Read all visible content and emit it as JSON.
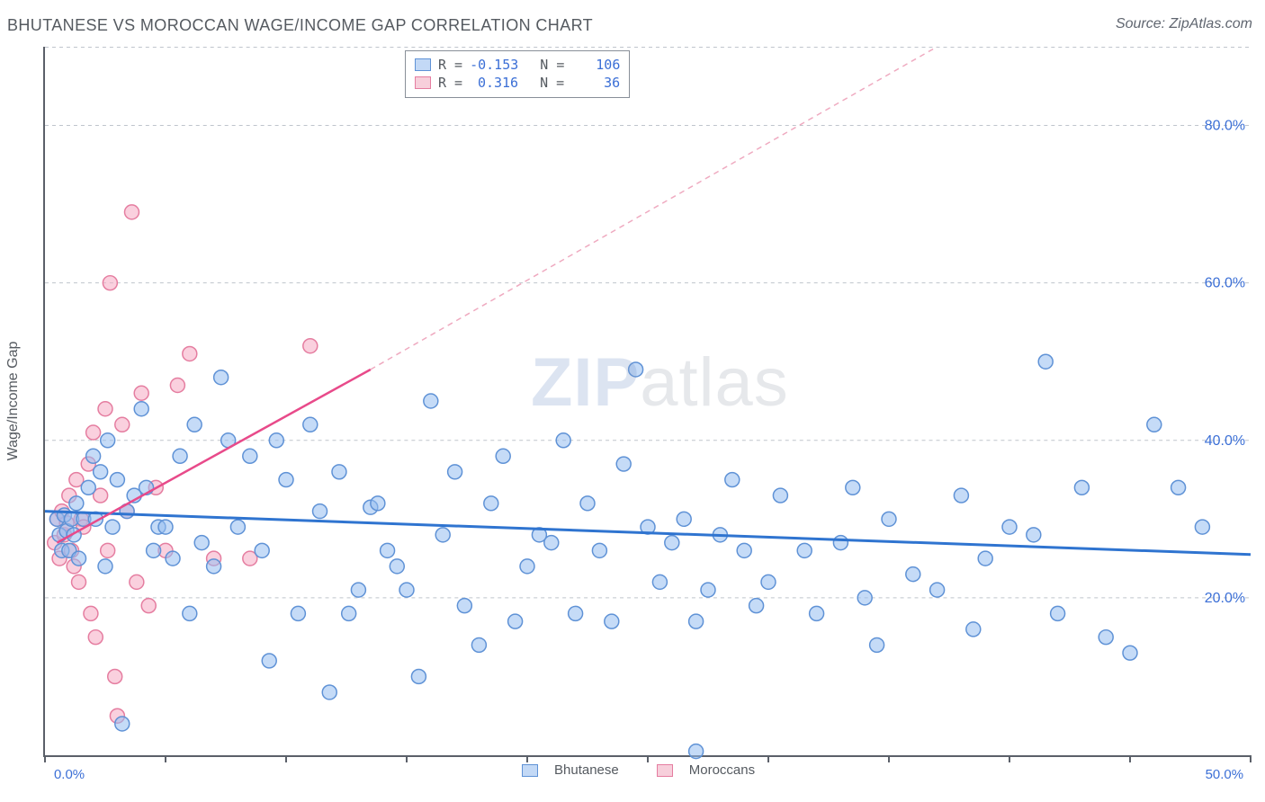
{
  "title": "BHUTANESE VS MOROCCAN WAGE/INCOME GAP CORRELATION CHART",
  "source_label": "Source: ZipAtlas.com",
  "ylabel": "Wage/Income Gap",
  "watermark_zip": "ZIP",
  "watermark_atlas": "atlas",
  "chart": {
    "type": "scatter",
    "xlim": [
      0,
      50
    ],
    "ylim": [
      0,
      90
    ],
    "x_ticks": [
      0,
      5,
      10,
      15,
      20,
      25,
      30,
      35,
      40,
      45,
      50
    ],
    "x_tick_labels": {
      "0": "0.0%",
      "50": "50.0%"
    },
    "y_gridlines": [
      20,
      40,
      60,
      80
    ],
    "y_tick_labels": {
      "20": "20.0%",
      "40": "40.0%",
      "60": "60.0%",
      "80": "80.0%"
    },
    "background_color": "#ffffff",
    "grid_color": "#bfc5cc",
    "axis_color": "#5b6069",
    "marker_radius": 8,
    "marker_stroke_width": 1.5,
    "series": [
      {
        "name": "Bhutanese",
        "fill": "rgba(150,190,240,0.55)",
        "stroke": "#5f92d6",
        "swatch_fill": "#c3d9f6",
        "swatch_border": "#5f92d6",
        "trend": {
          "x1": 0,
          "y1": 31,
          "x2": 50,
          "y2": 25.5,
          "color": "#2f74d0",
          "width": 3,
          "dash": "none"
        },
        "R": "-0.153",
        "N": "106",
        "points": [
          [
            0.5,
            30
          ],
          [
            0.6,
            28
          ],
          [
            0.7,
            26
          ],
          [
            0.8,
            30.5
          ],
          [
            0.9,
            28.5
          ],
          [
            1.0,
            26
          ],
          [
            1.1,
            30
          ],
          [
            1.2,
            28
          ],
          [
            1.3,
            32
          ],
          [
            1.4,
            25
          ],
          [
            1.6,
            30
          ],
          [
            1.8,
            34
          ],
          [
            2.0,
            38
          ],
          [
            2.1,
            30
          ],
          [
            2.3,
            36
          ],
          [
            2.5,
            24
          ],
          [
            2.6,
            40
          ],
          [
            2.8,
            29
          ],
          [
            3.0,
            35
          ],
          [
            3.2,
            4
          ],
          [
            3.4,
            31
          ],
          [
            3.7,
            33
          ],
          [
            4.0,
            44
          ],
          [
            4.2,
            34
          ],
          [
            4.5,
            26
          ],
          [
            4.7,
            29
          ],
          [
            5.0,
            29
          ],
          [
            5.3,
            25
          ],
          [
            5.6,
            38
          ],
          [
            6.0,
            18
          ],
          [
            6.2,
            42
          ],
          [
            6.5,
            27
          ],
          [
            7.0,
            24
          ],
          [
            7.3,
            48
          ],
          [
            7.6,
            40
          ],
          [
            8.0,
            29
          ],
          [
            8.5,
            38
          ],
          [
            9.0,
            26
          ],
          [
            9.3,
            12
          ],
          [
            9.6,
            40
          ],
          [
            10.0,
            35
          ],
          [
            10.5,
            18
          ],
          [
            11.0,
            42
          ],
          [
            11.4,
            31
          ],
          [
            11.8,
            8
          ],
          [
            12.2,
            36
          ],
          [
            12.6,
            18
          ],
          [
            13.0,
            21
          ],
          [
            13.5,
            31.5
          ],
          [
            13.8,
            32
          ],
          [
            14.2,
            26
          ],
          [
            14.6,
            24
          ],
          [
            15.0,
            21
          ],
          [
            15.5,
            10
          ],
          [
            16.0,
            45
          ],
          [
            16.5,
            28
          ],
          [
            17.0,
            36
          ],
          [
            17.4,
            19
          ],
          [
            18.0,
            14
          ],
          [
            18.5,
            32
          ],
          [
            19.0,
            38
          ],
          [
            19.5,
            17
          ],
          [
            20.0,
            24
          ],
          [
            20.5,
            28
          ],
          [
            21.0,
            27
          ],
          [
            21.5,
            40
          ],
          [
            22.0,
            18
          ],
          [
            22.5,
            32
          ],
          [
            23.0,
            26
          ],
          [
            23.5,
            17
          ],
          [
            24.0,
            37
          ],
          [
            24.5,
            49
          ],
          [
            25.0,
            29
          ],
          [
            25.5,
            22
          ],
          [
            26.0,
            27
          ],
          [
            26.5,
            30
          ],
          [
            27.0,
            0.5
          ],
          [
            27.0,
            17
          ],
          [
            27.5,
            21
          ],
          [
            28.0,
            28
          ],
          [
            28.5,
            35
          ],
          [
            29.0,
            26
          ],
          [
            29.5,
            19
          ],
          [
            30.0,
            22
          ],
          [
            30.5,
            33
          ],
          [
            31.5,
            26
          ],
          [
            32.0,
            18
          ],
          [
            33.0,
            27
          ],
          [
            33.5,
            34
          ],
          [
            34.0,
            20
          ],
          [
            34.5,
            14
          ],
          [
            35.0,
            30
          ],
          [
            36.0,
            23
          ],
          [
            37.0,
            21
          ],
          [
            38.0,
            33
          ],
          [
            38.5,
            16
          ],
          [
            39.0,
            25
          ],
          [
            40.0,
            29
          ],
          [
            41.0,
            28
          ],
          [
            41.5,
            50
          ],
          [
            42.0,
            18
          ],
          [
            43.0,
            34
          ],
          [
            44.0,
            15
          ],
          [
            45.0,
            13
          ],
          [
            46.0,
            42
          ],
          [
            47.0,
            34
          ],
          [
            48.0,
            29
          ]
        ]
      },
      {
        "name": "Moroccans",
        "fill": "rgba(245,170,195,0.55)",
        "stroke": "#e57da0",
        "swatch_fill": "#f7cfdb",
        "swatch_border": "#e57da0",
        "trend": {
          "x1": 0.5,
          "y1": 27,
          "x2": 13.5,
          "y2": 49,
          "color": "#e84a8a",
          "width": 2.5,
          "dash": "none"
        },
        "trend_extend": {
          "x1": 13.5,
          "y1": 49,
          "x2": 37,
          "y2": 90,
          "color": "#efaac0",
          "width": 1.5,
          "dash": "6 5"
        },
        "R": " 0.316",
        "N": " 36",
        "points": [
          [
            0.4,
            27
          ],
          [
            0.5,
            30
          ],
          [
            0.6,
            25
          ],
          [
            0.7,
            31
          ],
          [
            0.8,
            28
          ],
          [
            0.9,
            29.5
          ],
          [
            1.0,
            33
          ],
          [
            1.1,
            26
          ],
          [
            1.2,
            24
          ],
          [
            1.3,
            35
          ],
          [
            1.4,
            22
          ],
          [
            1.5,
            30
          ],
          [
            1.6,
            29
          ],
          [
            1.8,
            37
          ],
          [
            1.9,
            18
          ],
          [
            2.0,
            41
          ],
          [
            2.1,
            15
          ],
          [
            2.3,
            33
          ],
          [
            2.5,
            44
          ],
          [
            2.6,
            26
          ],
          [
            2.7,
            60
          ],
          [
            2.9,
            10
          ],
          [
            3.0,
            5
          ],
          [
            3.2,
            42
          ],
          [
            3.4,
            31
          ],
          [
            3.6,
            69
          ],
          [
            3.8,
            22
          ],
          [
            4.0,
            46
          ],
          [
            4.3,
            19
          ],
          [
            4.6,
            34
          ],
          [
            5.0,
            26
          ],
          [
            5.5,
            47
          ],
          [
            6.0,
            51
          ],
          [
            7.0,
            25
          ],
          [
            8.5,
            25
          ],
          [
            11.0,
            52
          ]
        ]
      }
    ]
  },
  "legend": {
    "series1_label": "Bhutanese",
    "series2_label": "Moroccans"
  },
  "correlation_box": {
    "R_label": "R =",
    "N_label": "N ="
  }
}
